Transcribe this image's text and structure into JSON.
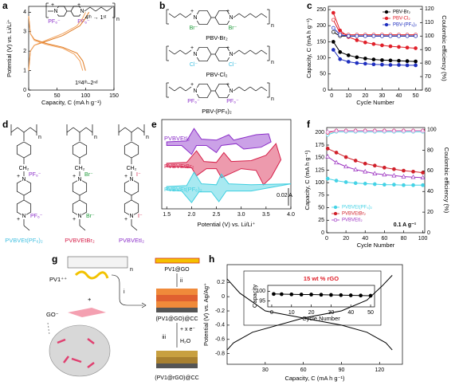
{
  "panel_labels": [
    "a",
    "b",
    "c",
    "d",
    "e",
    "f",
    "g",
    "h"
  ],
  "structures": {
    "N": "N",
    "charge": "+",
    "repeat": "n",
    "linker": "CH₂",
    "a_anions": [
      "PF₆⁻",
      "PF₆⁻"
    ],
    "b_names": [
      "PBV-Br₂",
      "PBV-Cl₂",
      "PBV-(PF₆)₂"
    ],
    "b_anions": [
      "Br⁻",
      "Br⁻",
      "Cl⁻",
      "Cl⁻",
      "PF₆⁻",
      "PF₆⁻"
    ],
    "d_names": [
      "PVBVEt(PF₆)₂",
      "PVBVEtBr₂",
      "PVBVEtI₂"
    ],
    "d_anions": [
      "PF₆⁻",
      "PF₆⁻",
      "Br⁻",
      "Br⁻",
      "I⁻",
      "I⁻"
    ]
  },
  "scheme_g": {
    "labels": [
      "PV1@GO",
      "PV1⁺⁺",
      "GO⁻",
      "+",
      "i",
      "ii",
      "iii",
      "(PV1@GO)@CC",
      "+ x e⁻",
      "H₂O",
      "(PV1@rGO)@CC",
      "n"
    ]
  },
  "chart_data": [
    {
      "type": "line",
      "xlabel": "Capacity, C (mA h g⁻¹)",
      "ylabel": "Potential (V) vs. Li/Li⁺",
      "xlim": [
        0,
        150
      ],
      "ylim": [
        0,
        4.3
      ],
      "xticks": [
        0,
        50,
        100,
        150
      ],
      "yticks": [
        0,
        1,
        2,
        3,
        4
      ],
      "annotations": [
        "4ᵗʰ → 1ˢᵗ",
        "1ˢᵗ",
        "4ᵗʰ–2ⁿᵈ"
      ],
      "series": [
        {
          "color": "#e07b22",
          "style": "line",
          "x": [
            0,
            3,
            10,
            30,
            60,
            90,
            100,
            106
          ],
          "values": [
            1.0,
            2.0,
            2.3,
            2.5,
            2.8,
            3.3,
            3.7,
            4.0
          ]
        },
        {
          "color": "#f2a35e",
          "style": "line",
          "x": [
            0,
            3,
            10,
            30,
            60,
            85,
            95,
            100
          ],
          "values": [
            1.0,
            2.0,
            2.3,
            2.55,
            2.9,
            3.3,
            3.7,
            4.0
          ]
        },
        {
          "color": "#e07b22",
          "style": "line",
          "x": [
            0,
            3,
            10,
            30,
            60,
            85,
            95,
            100
          ],
          "values": [
            3.8,
            2.9,
            2.6,
            2.4,
            2.2,
            1.9,
            1.5,
            1.0
          ]
        },
        {
          "color": "#f2a35e",
          "style": "line",
          "x": [
            0,
            3,
            10,
            30,
            60,
            80,
            90,
            95
          ],
          "values": [
            3.8,
            2.9,
            2.55,
            2.35,
            2.15,
            1.85,
            1.5,
            1.0
          ]
        }
      ]
    },
    {
      "type": "line",
      "xlabel": "Cycle Number",
      "ylabel": "Capacity, C (mA h g⁻¹)",
      "y2label": "Coulombic efficiency (%)",
      "xlim": [
        -2,
        54
      ],
      "ylim": [
        0,
        260
      ],
      "y2lim": [
        60,
        122
      ],
      "xticks": [
        0,
        10,
        20,
        30,
        40,
        50
      ],
      "yticks": [
        0,
        50,
        100,
        150,
        200,
        250
      ],
      "y2ticks": [
        60,
        70,
        80,
        90,
        100,
        110,
        120
      ],
      "legend": "top-right",
      "x": [
        1,
        5,
        10,
        15,
        20,
        25,
        30,
        35,
        40,
        45,
        50
      ],
      "series": [
        {
          "name": "PBV-Br₂",
          "color": "#000000",
          "style": "line+markers",
          "marker": "circle",
          "values": [
            150,
            118,
            108,
            102,
            98,
            95,
            93,
            92,
            91,
            90,
            89
          ]
        },
        {
          "name": "PBV-Cl₂",
          "color": "#e0202a",
          "style": "line+markers",
          "marker": "circle",
          "values": [
            240,
            185,
            165,
            155,
            148,
            143,
            139,
            136,
            134,
            132,
            130
          ]
        },
        {
          "name": "PBV-(PF₆)₂",
          "color": "#1f2fbf",
          "style": "line+markers",
          "marker": "circle",
          "values": [
            125,
            96,
            88,
            84,
            82,
            80,
            79,
            78,
            78,
            77,
            77
          ]
        },
        {
          "color": "#000000",
          "style": "line+markers",
          "marker": "open-circle",
          "axis": "y2",
          "values": [
            103,
            100,
            100,
            100,
            100,
            100,
            100,
            100,
            100,
            100,
            100
          ]
        },
        {
          "color": "#e0202a",
          "style": "line+markers",
          "marker": "open-circle",
          "axis": "y2",
          "values": [
            112,
            102,
            101,
            101,
            101,
            101,
            101,
            101,
            101,
            101,
            101
          ]
        },
        {
          "color": "#1f2fbf",
          "style": "line+markers",
          "marker": "open-circle",
          "axis": "y2",
          "values": [
            106,
            101,
            100,
            100,
            100,
            100,
            100,
            100,
            100,
            100,
            100
          ]
        }
      ]
    },
    {
      "type": "line",
      "xlabel": "Potential (V) vs. Li/Li⁺",
      "xlim": [
        1.4,
        4.0
      ],
      "ylim": [
        -0.005,
        0.095
      ],
      "xticks": [
        1.5,
        {
          "value": 2,
          "label": "2.0"
        },
        2.5,
        {
          "value": 3,
          "label": "3.0"
        },
        3.5,
        {
          "value": 4,
          "label": "4.0"
        }
      ],
      "annotations": [
        "0.02 A"
      ],
      "series_labels": true,
      "series": [
        {
          "name": "PVBVEtI₂",
          "color": "#8b2fc9",
          "style": "line",
          "fill": true,
          "x": [
            1.5,
            1.9,
            2.05,
            2.2,
            2.5,
            2.75,
            2.85,
            3.0,
            3.3,
            3.55,
            3.6,
            3.4,
            3.05,
            2.9,
            2.6,
            2.5,
            2.3,
            2.1,
            2.0,
            1.8,
            1.5
          ],
          "values": [
            0.07,
            0.071,
            0.085,
            0.073,
            0.072,
            0.078,
            0.072,
            0.074,
            0.078,
            0.079,
            0.07,
            0.064,
            0.062,
            0.068,
            0.066,
            0.058,
            0.066,
            0.066,
            0.056,
            0.066,
            0.066
          ]
        },
        {
          "name": "PVBVEtBr₂",
          "color": "#d6204a",
          "style": "line",
          "fill": true,
          "x": [
            1.5,
            1.9,
            2.1,
            2.25,
            2.5,
            2.65,
            2.8,
            3.2,
            3.5,
            3.7,
            3.8,
            3.6,
            3.45,
            3.3,
            3.0,
            2.6,
            2.5,
            2.3,
            2.1,
            2.0,
            1.8,
            1.5
          ],
          "values": [
            0.046,
            0.047,
            0.06,
            0.048,
            0.047,
            0.058,
            0.048,
            0.049,
            0.055,
            0.068,
            0.05,
            0.03,
            0.022,
            0.038,
            0.04,
            0.03,
            0.04,
            0.04,
            0.032,
            0.041,
            0.042,
            0.042
          ]
        },
        {
          "name": "PVBVEt(PF₆)₂",
          "color": "#3fcfe0",
          "style": "line",
          "fill": true,
          "x": [
            1.5,
            1.9,
            2.05,
            2.2,
            2.5,
            2.6,
            2.75,
            3.2,
            4.0,
            3.2,
            2.7,
            2.55,
            2.4,
            2.15,
            2.0,
            1.8,
            1.5
          ],
          "values": [
            0.02,
            0.021,
            0.036,
            0.023,
            0.022,
            0.034,
            0.023,
            0.022,
            0.023,
            0.015,
            0.015,
            0.003,
            0.014,
            0.014,
            0.002,
            0.015,
            0.016
          ]
        }
      ]
    },
    {
      "type": "line",
      "xlabel": "Cycle Number",
      "ylabel": "Capacity, C (mA h g⁻¹)",
      "y2label": "Coulombic efficiency (%)",
      "xlim": [
        0,
        102
      ],
      "ylim": [
        0,
        210
      ],
      "y2lim": [
        0,
        102
      ],
      "xticks": [
        0,
        20,
        40,
        60,
        80,
        100
      ],
      "yticks": [
        0,
        25,
        50,
        75,
        100,
        125,
        150,
        175,
        200
      ],
      "y2ticks": [
        0,
        20,
        40,
        60,
        80,
        100
      ],
      "legend": "bottom-left",
      "annotations": [
        "0.1 A g⁻¹"
      ],
      "x": [
        1,
        10,
        20,
        30,
        40,
        50,
        60,
        70,
        80,
        90,
        100
      ],
      "series": [
        {
          "name": "PVBVEt(PF₆)₂",
          "color": "#45d3e6",
          "style": "line+markers",
          "marker": "circle",
          "values": [
            108,
            104,
            101,
            99,
            98,
            97,
            96,
            96,
            95,
            95,
            95
          ]
        },
        {
          "name": "PVBVEtBr₂",
          "color": "#d0202a",
          "style": "line+markers",
          "marker": "circle",
          "values": [
            168,
            160,
            151,
            144,
            138,
            134,
            130,
            127,
            124,
            122,
            120
          ]
        },
        {
          "name": "PVBVEtI₂",
          "color": "#9b30c0",
          "style": "line+markers",
          "marker": "open-triangle",
          "values": [
            152,
            140,
            132,
            126,
            122,
            118,
            116,
            114,
            112,
            111,
            110
          ]
        },
        {
          "color": "#45d3e6",
          "style": "line+markers",
          "marker": "open-circle",
          "axis": "y2",
          "values": [
            95,
            98,
            98,
            98,
            98,
            98,
            98,
            98,
            98,
            98,
            98
          ]
        },
        {
          "color": "#d0202a",
          "style": "line+markers",
          "marker": "open-circle",
          "axis": "y2",
          "values": [
            97,
            99,
            99,
            99,
            99,
            99,
            99,
            99,
            99,
            99,
            99
          ]
        },
        {
          "color": "#e08ad8",
          "style": "line+markers",
          "marker": "open-triangle",
          "axis": "y2",
          "values": [
            98,
            99,
            99,
            99,
            99,
            99,
            99,
            99,
            99,
            99,
            99
          ]
        }
      ]
    },
    {
      "type": "line",
      "xlabel": "Capacity, C (mA h g⁻¹)",
      "ylabel": "Potential (V) vs. Ag/Ag⁺",
      "xlim": [
        0,
        138
      ],
      "ylim": [
        -0.95,
        0.45
      ],
      "xticks": [
        30,
        60,
        90,
        120
      ],
      "yticks": [
        0.2,
        0,
        -0.2,
        -0.4,
        -0.6,
        -0.8
      ],
      "series": [
        {
          "color": "#000000",
          "style": "line",
          "x": [
            0,
            10,
            30,
            60,
            90,
            110,
            125,
            130
          ],
          "values": [
            0.25,
            0.05,
            -0.2,
            -0.3,
            -0.4,
            -0.5,
            -0.65,
            -0.75
          ]
        },
        {
          "color": "#000000",
          "style": "line",
          "x": [
            0,
            5,
            20,
            60,
            90,
            110,
            122,
            130
          ],
          "values": [
            -0.75,
            -0.65,
            -0.5,
            -0.3,
            -0.2,
            -0.05,
            0.15,
            0.3
          ]
        }
      ]
    },
    {
      "type": "line",
      "title": "15 wt % rGO",
      "xlabel": "Cycle Number",
      "ylabel": "Capacity",
      "xlim": [
        -2,
        52
      ],
      "ylim": [
        92,
        103
      ],
      "xticks": [
        0,
        10,
        20,
        30,
        40,
        50
      ],
      "yticks": [
        95,
        100
      ],
      "x": [
        1,
        5,
        10,
        15,
        20,
        25,
        30,
        35,
        40,
        45,
        50
      ],
      "series": [
        {
          "color": "#000000",
          "style": "line+markers",
          "marker": "circle",
          "values": [
            98.6,
            98.5,
            98.4,
            98.3,
            98.3,
            98.2,
            98.1,
            98.0,
            97.9,
            97.8,
            97.7
          ]
        }
      ]
    }
  ]
}
